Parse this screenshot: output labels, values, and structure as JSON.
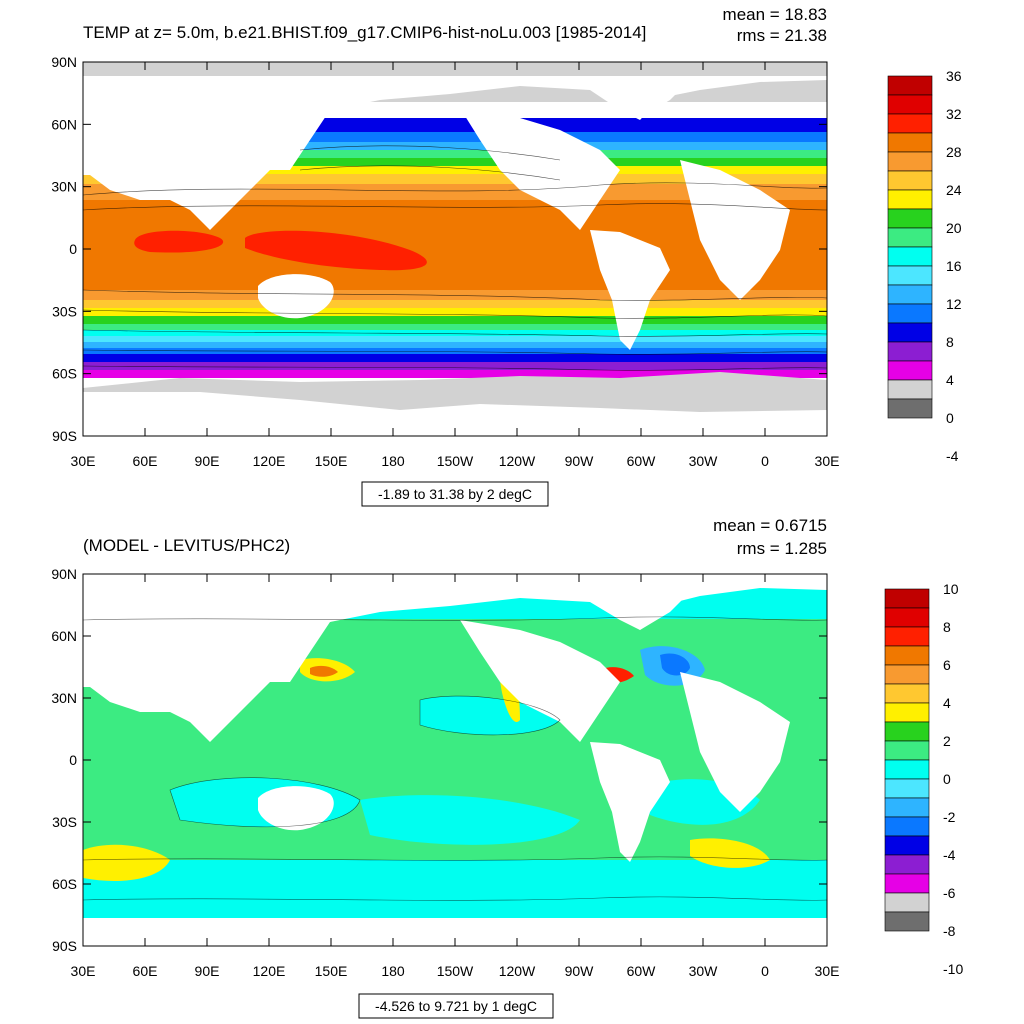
{
  "panels": [
    {
      "id": "top",
      "title": "TEMP at z=   5.0m, b.e21.BHIST.f09_g17.CMIP6-hist-noLu.003 [1985-2014]",
      "stats": {
        "mean": "mean = 18.83",
        "rms": "rms = 21.38"
      },
      "range_label": "-1.89 to 31.38 by 2 degC",
      "colorbar": {
        "labels": [
          "36",
          "32",
          "28",
          "24",
          "20",
          "16",
          "12",
          "8",
          "4",
          "0",
          "-4"
        ],
        "colors": [
          "#C00000",
          "#E00000",
          "#FF2000",
          "#F07800",
          "#F89A30",
          "#FFC830",
          "#FFF000",
          "#28D21E",
          "#3CEB82",
          "#00FFF0",
          "#4CE6FF",
          "#2EB4FF",
          "#0A78FF",
          "#0000E6",
          "#8C1ED2",
          "#E600E6",
          "#D2D2D2",
          "#6E6E6E"
        ]
      },
      "palette": {
        "cold": [
          "#8C1ED2",
          "#0000E6",
          "#0A78FF",
          "#2EB4FF",
          "#4CE6FF",
          "#00FFF0",
          "#3CEB82",
          "#28D21E",
          "#FFF000",
          "#FFC830",
          "#F89A30",
          "#F07800"
        ],
        "warm": "#F07800",
        "hot": "#FF2000",
        "ice": "#D2D2D2",
        "arctic": "#E600E6"
      }
    },
    {
      "id": "bottom",
      "title": "(MODEL - LEVITUS/PHC2)",
      "stats": {
        "mean": "mean = 0.6715",
        "rms": "rms = 1.285"
      },
      "range_label": "-4.526 to 9.721 by 1 degC",
      "colorbar": {
        "labels": [
          "10",
          "8",
          "6",
          "4",
          "2",
          "0",
          "-2",
          "-4",
          "-6",
          "-8",
          "-10"
        ],
        "colors": [
          "#C00000",
          "#E00000",
          "#FF2000",
          "#F07800",
          "#F89A30",
          "#FFC830",
          "#FFF000",
          "#28D21E",
          "#3CEB82",
          "#00FFF0",
          "#4CE6FF",
          "#2EB4FF",
          "#0A78FF",
          "#0000E6",
          "#8C1ED2",
          "#E600E6",
          "#D2D2D2",
          "#6E6E6E"
        ]
      },
      "palette": {
        "base": "#3CEB82",
        "cool": "#00FFF0",
        "warm": "#FFF000",
        "hot": "#FF2000",
        "cold": "#0A78FF"
      }
    }
  ],
  "axes": {
    "lat_labels": [
      "90N",
      "60N",
      "30N",
      "0",
      "30S",
      "60S",
      "90S"
    ],
    "lon_labels": [
      "30E",
      "60E",
      "90E",
      "120E",
      "150E",
      "180",
      "150W",
      "120W",
      "90W",
      "60W",
      "30W",
      "0",
      "30E"
    ]
  }
}
